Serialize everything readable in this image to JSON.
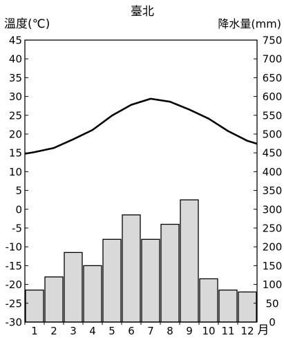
{
  "chart_data": {
    "type": "bar+line",
    "title": "臺北",
    "y_left_label": "溫度(℃)",
    "y_right_label": "降水量(mm)",
    "x_unit_label": "月",
    "categories": [
      "1",
      "2",
      "3",
      "4",
      "5",
      "6",
      "7",
      "8",
      "9",
      "10",
      "11",
      "12"
    ],
    "temperature": [
      15.2,
      16.3,
      18.6,
      21.1,
      24.9,
      27.8,
      29.4,
      28.6,
      26.5,
      24.1,
      20.8,
      18.2
    ],
    "precipitation": [
      85,
      120,
      185,
      150,
      220,
      285,
      220,
      260,
      325,
      115,
      85,
      80
    ],
    "y_left_range": [
      -30,
      45
    ],
    "y_left_ticks": [
      -30,
      -25,
      -20,
      -15,
      -10,
      -5,
      0,
      5,
      10,
      15,
      20,
      25,
      30,
      35,
      40,
      45
    ],
    "y_right_range": [
      0,
      750
    ],
    "y_right_ticks": [
      0,
      50,
      100,
      150,
      200,
      250,
      300,
      350,
      400,
      450,
      500,
      550,
      600,
      650,
      700,
      750
    ],
    "grid": false,
    "colors": {
      "bar_fill": "#d9d9d9",
      "bar_stroke": "#000000",
      "line": "#000000",
      "axis": "#000000"
    }
  }
}
